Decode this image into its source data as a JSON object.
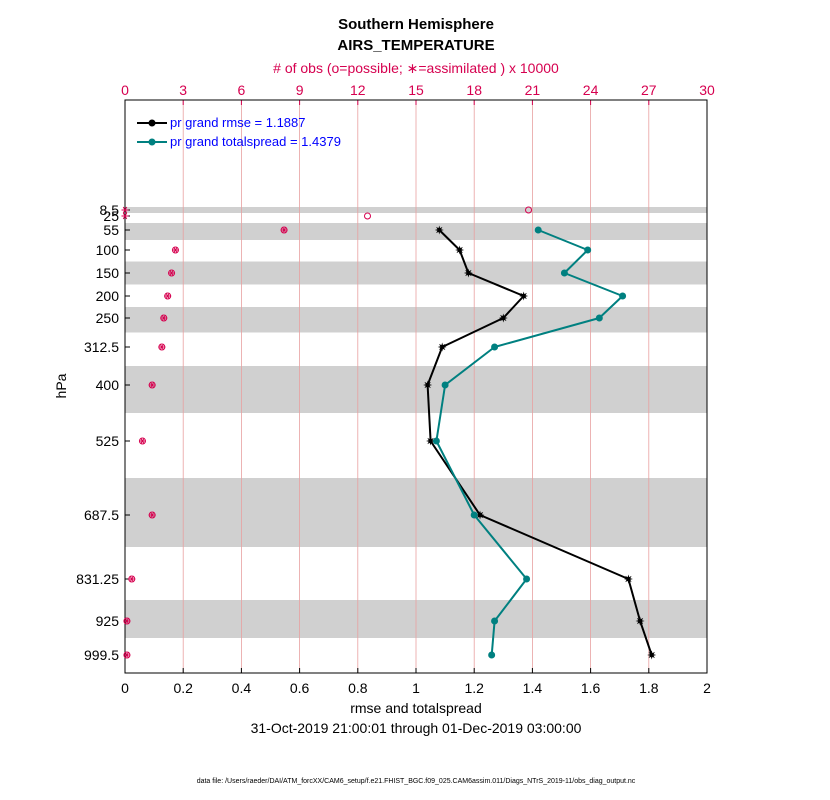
{
  "chart_data": {
    "type": "line",
    "title": "Southern Hemisphere",
    "subtitle": "AIRS_TEMPERATURE",
    "top_axis_label": "# of obs (o=possible; ∗=assimilated ) x 10000",
    "xlabel": "rmse and totalspread",
    "ylabel": "hPa",
    "date_range": "31-Oct-2019 21:00:01 through 01-Dec-2019 03:00:00",
    "footer": "data file: /Users/raeder/DAI/ATM_forcXX/CAM6_setup/f.e21.FHIST_BGC.f09_025.CAM6assim.011/Diags_NTrS_2019-11/obs_diag_output.nc",
    "xlim": [
      0,
      2
    ],
    "x_ticks": [
      "0",
      "0.2",
      "0.4",
      "0.6",
      "0.8",
      "1",
      "1.2",
      "1.4",
      "1.6",
      "1.8",
      "2"
    ],
    "top_xlim": [
      0,
      30
    ],
    "top_ticks": [
      "0",
      "3",
      "6",
      "9",
      "12",
      "15",
      "18",
      "21",
      "24",
      "27",
      "30"
    ],
    "levels": [
      "8.5",
      "25",
      "55",
      "100",
      "150",
      "200",
      "250",
      "312.5",
      "400",
      "525",
      "687.5",
      "831.25",
      "925",
      "999.5"
    ],
    "series": [
      {
        "name": "rmse",
        "legend": "pr grand rmse = 1.1887",
        "color": "#000000",
        "marker": "star",
        "values": [
          null,
          null,
          1.08,
          1.15,
          1.18,
          1.37,
          1.3,
          1.09,
          1.04,
          1.05,
          1.22,
          1.73,
          1.77,
          1.81
        ]
      },
      {
        "name": "totalspread",
        "legend": "pr grand totalspread = 1.4379",
        "color": "#008080",
        "marker": "dot",
        "values": [
          null,
          null,
          1.42,
          1.59,
          1.51,
          1.71,
          1.63,
          1.27,
          1.1,
          1.07,
          1.2,
          1.38,
          1.27,
          1.26
        ]
      }
    ],
    "obs_possible": [
      20.8,
      12.5,
      8.2,
      2.6,
      2.4,
      2.2,
      2.0,
      1.9,
      1.4,
      0.9,
      1.4,
      0.35,
      0.1,
      0.1
    ],
    "obs_assimilated": [
      0.0,
      0.0,
      8.2,
      2.6,
      2.4,
      2.2,
      2.0,
      1.9,
      1.4,
      0.9,
      1.4,
      0.35,
      0.1,
      0.1
    ],
    "colors": {
      "obs": "#d6004f",
      "band": "#d0d0d0",
      "grid_vertical": "#e8a0a0"
    }
  }
}
